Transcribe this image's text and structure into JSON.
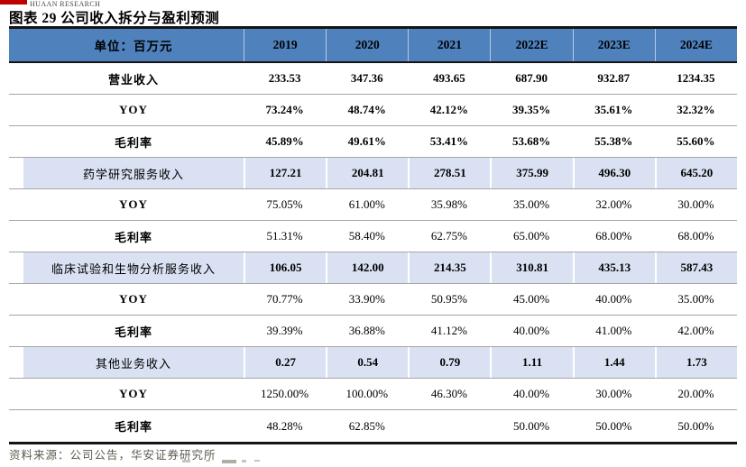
{
  "logo": {
    "brand_text": "HUAAN RESEARCH"
  },
  "title": "图表 29 公司收入拆分与盈利预测",
  "table": {
    "header": {
      "unit_label": "单位：百万元",
      "columns": [
        "2019",
        "2020",
        "2021",
        "2022E",
        "2023E",
        "2024E"
      ]
    },
    "rows": [
      {
        "label": "营业收入",
        "style": "total",
        "values": [
          "233.53",
          "347.36",
          "493.65",
          "687.90",
          "932.87",
          "1234.35"
        ]
      },
      {
        "label": "YOY",
        "style": "total",
        "values": [
          "73.24%",
          "48.74%",
          "42.12%",
          "39.35%",
          "35.61%",
          "32.32%"
        ]
      },
      {
        "label": "毛利率",
        "style": "total",
        "values": [
          "45.89%",
          "49.61%",
          "53.41%",
          "53.68%",
          "55.38%",
          "55.60%"
        ]
      },
      {
        "label": "药学研究服务收入",
        "style": "section",
        "values": [
          "127.21",
          "204.81",
          "278.51",
          "375.99",
          "496.30",
          "645.20"
        ]
      },
      {
        "label": "YOY",
        "style": "sub",
        "values": [
          "75.05%",
          "61.00%",
          "35.98%",
          "35.00%",
          "32.00%",
          "30.00%"
        ]
      },
      {
        "label": "毛利率",
        "style": "sub",
        "values": [
          "51.31%",
          "58.40%",
          "62.75%",
          "65.00%",
          "68.00%",
          "68.00%"
        ]
      },
      {
        "label": "临床试验和生物分析服务收入",
        "style": "section",
        "values": [
          "106.05",
          "142.00",
          "214.35",
          "310.81",
          "435.13",
          "587.43"
        ]
      },
      {
        "label": "YOY",
        "style": "sub",
        "values": [
          "70.77%",
          "33.90%",
          "50.95%",
          "45.00%",
          "40.00%",
          "35.00%"
        ]
      },
      {
        "label": "毛利率",
        "style": "sub",
        "values": [
          "39.39%",
          "36.88%",
          "41.12%",
          "40.00%",
          "41.00%",
          "42.00%"
        ]
      },
      {
        "label": "其他业务收入",
        "style": "section",
        "values": [
          "0.27",
          "0.54",
          "0.79",
          "1.11",
          "1.44",
          "1.73"
        ]
      },
      {
        "label": "YOY",
        "style": "sub",
        "values": [
          "1250.00%",
          "100.00%",
          "46.30%",
          "40.00%",
          "30.00%",
          "20.00%"
        ]
      },
      {
        "label": "毛利率",
        "style": "sub",
        "values": [
          "48.28%",
          "62.85%",
          "",
          "50.00%",
          "50.00%",
          "50.00%"
        ]
      }
    ]
  },
  "footer": {
    "source": "资料来源：公司公告，华安证券研究所"
  },
  "colors": {
    "header_bg": "#4f81bd",
    "section_bg": "#d9e1f2",
    "row_divider": "#a6a6a6",
    "thick_border": "#141414",
    "logo_red": "#c00000",
    "source_text": "#5e5b4e"
  }
}
